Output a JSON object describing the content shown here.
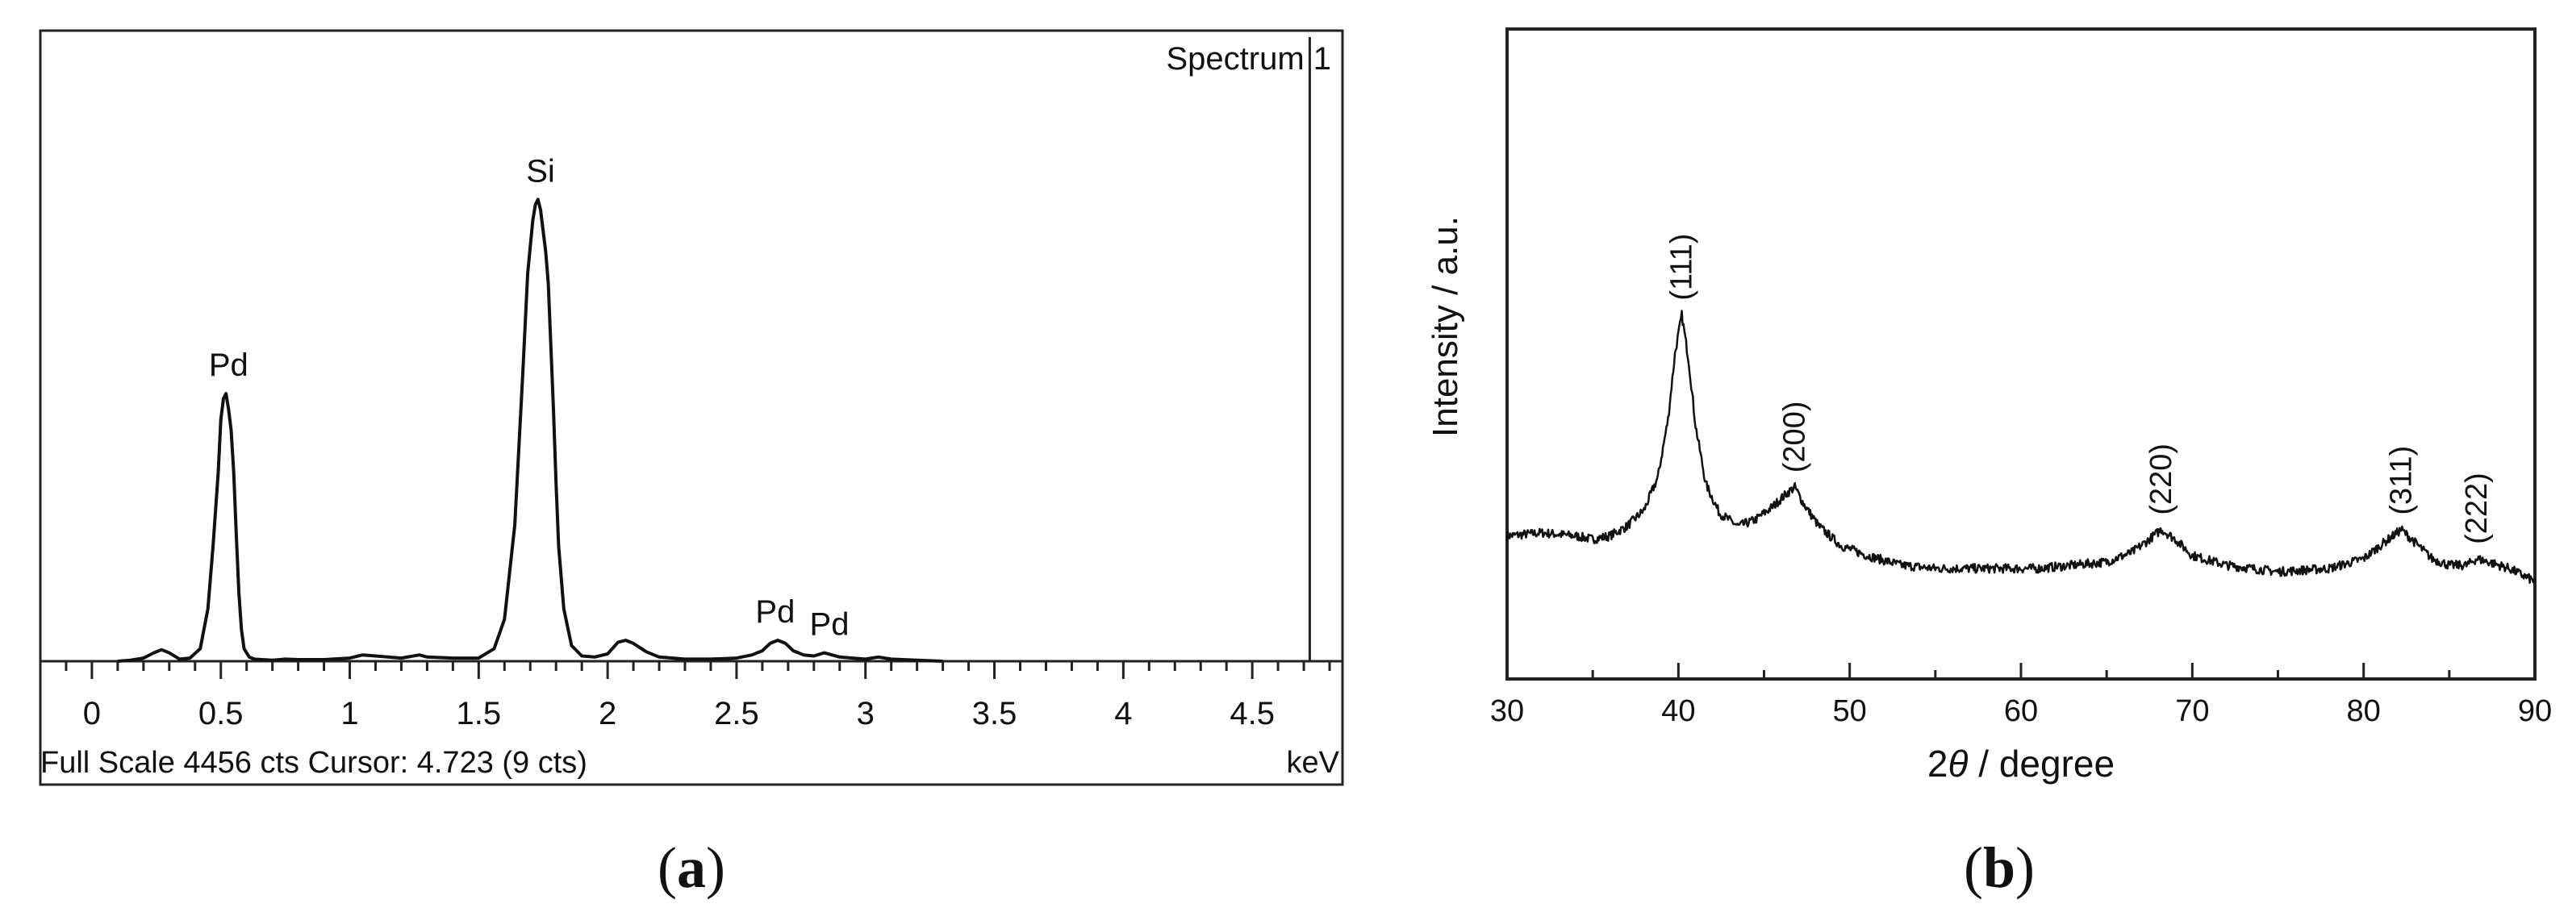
{
  "panel_a": {
    "caption_letter": "a",
    "status_text": "Full Scale 4456 cts Cursor: 4.723  (9 cts)",
    "unit_label": "keV"
  },
  "panel_b": {
    "caption_letter": "b"
  },
  "chart_data": [
    {
      "type": "line",
      "panel": "a",
      "title": "",
      "legend": "Spectrum 1",
      "xlabel": "keV",
      "ylabel": "",
      "xlim": [
        -0.2,
        4.85
      ],
      "ylim": [
        0,
        4456
      ],
      "xticks": [
        0,
        0.5,
        1,
        1.5,
        2,
        2.5,
        3,
        3.5,
        4,
        4.5
      ],
      "xtick_labels": [
        "0",
        "0.5",
        "1",
        "1.5",
        "2",
        "2.5",
        "3",
        "3.5",
        "4",
        "4.5"
      ],
      "cursor_keV": 4.723,
      "full_scale_cts": 4456,
      "series": [
        {
          "x": [
            0.1,
            0.15,
            0.2,
            0.24,
            0.27,
            0.3,
            0.34,
            0.38,
            0.42,
            0.45,
            0.47,
            0.49,
            0.5,
            0.51,
            0.52,
            0.53,
            0.54,
            0.55,
            0.56,
            0.57,
            0.58,
            0.59,
            0.61,
            0.63,
            0.66,
            0.7,
            0.75,
            0.8,
            0.9,
            1.0,
            1.05,
            1.1,
            1.2,
            1.27,
            1.3,
            1.4,
            1.5,
            1.56,
            1.6,
            1.64,
            1.67,
            1.69,
            1.71,
            1.72,
            1.73,
            1.74,
            1.75,
            1.76,
            1.77,
            1.78,
            1.79,
            1.8,
            1.81,
            1.83,
            1.86,
            1.9,
            1.95,
            2.0,
            2.04,
            2.07,
            2.1,
            2.15,
            2.2,
            2.3,
            2.4,
            2.5,
            2.56,
            2.6,
            2.63,
            2.66,
            2.69,
            2.72,
            2.76,
            2.8,
            2.84,
            2.87,
            2.9,
            2.95,
            3.0,
            3.05,
            3.1,
            3.2,
            3.3
          ],
          "y": [
            0,
            10,
            30,
            80,
            110,
            80,
            20,
            30,
            120,
            500,
            1100,
            1800,
            2300,
            2500,
            2550,
            2400,
            2200,
            1800,
            1200,
            650,
            300,
            120,
            40,
            20,
            15,
            10,
            20,
            15,
            15,
            30,
            60,
            50,
            30,
            60,
            40,
            30,
            30,
            120,
            400,
            1300,
            2700,
            3700,
            4200,
            4350,
            4400,
            4300,
            4100,
            3900,
            3600,
            3000,
            2400,
            1700,
            1100,
            500,
            150,
            50,
            40,
            70,
            180,
            200,
            170,
            90,
            40,
            20,
            20,
            30,
            60,
            100,
            170,
            200,
            170,
            100,
            60,
            50,
            80,
            60,
            40,
            30,
            20,
            40,
            20,
            10,
            0
          ]
        }
      ],
      "annotations": [
        {
          "text": "Pd",
          "x": 0.53
        },
        {
          "text": "Si",
          "x": 1.74
        },
        {
          "text": "Pd",
          "x": 2.65
        },
        {
          "text": "Pd",
          "x": 2.86
        }
      ]
    },
    {
      "type": "line",
      "panel": "b",
      "title": "",
      "xlabel": "2θ / degree",
      "xlabel_prefix": "2",
      "xlabel_symbol": "θ",
      "xlabel_suffix": " / degree",
      "ylabel": "Intensity / a.u.",
      "xlim": [
        30,
        90
      ],
      "ylim": [
        0,
        100
      ],
      "xticks": [
        30,
        40,
        50,
        60,
        70,
        80,
        90
      ],
      "series": [
        {
          "x": [
            30,
            32,
            34,
            35,
            36,
            37,
            38,
            38.8,
            39.4,
            39.8,
            40.2,
            40.6,
            41.0,
            41.6,
            42.4,
            43.5,
            44.5,
            45.5,
            46.3,
            46.8,
            47.3,
            48.2,
            49.5,
            51,
            53,
            55,
            58,
            61,
            63,
            65,
            66.5,
            67.5,
            68.2,
            69,
            70,
            72,
            75,
            78,
            80,
            81.2,
            82.2,
            83,
            84,
            85,
            86,
            86.6,
            87.3,
            88.5,
            90
          ],
          "y": [
            22,
            22.5,
            22,
            21.5,
            22,
            23.5,
            26,
            31,
            40,
            50,
            56,
            49,
            39,
            30,
            25.5,
            23.5,
            24.5,
            26.5,
            28.5,
            29.5,
            27,
            23.5,
            20.5,
            19,
            17.5,
            17,
            17,
            17,
            17.5,
            18,
            19.5,
            21.5,
            23,
            21.5,
            19,
            17.5,
            16.5,
            17,
            18.5,
            21,
            23,
            21,
            18.5,
            17.5,
            17.5,
            18.5,
            18,
            17,
            15
          ]
        }
      ],
      "annotations": [
        {
          "text": "(111)",
          "x": 40.2
        },
        {
          "text": "(200)",
          "x": 46.8
        },
        {
          "text": "(220)",
          "x": 68.2
        },
        {
          "text": "(311)",
          "x": 82.2
        },
        {
          "text": "(222)",
          "x": 86.6
        }
      ]
    }
  ]
}
